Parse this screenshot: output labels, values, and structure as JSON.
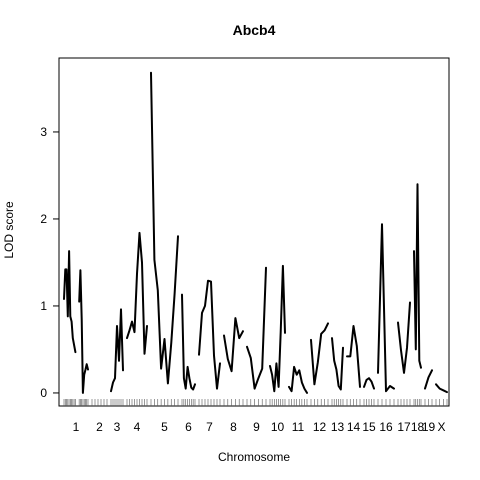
{
  "chart_data": {
    "type": "line",
    "title": "Abcb4",
    "xlabel": "Chromosome",
    "ylabel": "LOD score",
    "ylim": [
      -0.15,
      3.85
    ],
    "y_ticks": [
      0,
      1,
      2,
      3
    ],
    "grid": false,
    "legend": "none",
    "chromosome_labels": [
      "1",
      "2",
      "3",
      "4",
      "5",
      "6",
      "7",
      "8",
      "9",
      "10",
      "11",
      "12",
      "13",
      "14",
      "15",
      "16",
      "17",
      "18",
      "19",
      "X"
    ],
    "series": [
      {
        "chromosomes": [
          {
            "chr": "1",
            "lod": [
              [
                1.08,
                1.42,
                1.42,
                0.88,
                1.63,
                0.88,
                0.82,
                0.63,
                0.55,
                0.47
              ],
              [
                1.05,
                1.41,
                0.85,
                0.0,
                0.21,
                0.27,
                0.33,
                0.27
              ]
            ]
          },
          {
            "chr": "3",
            "lod": [
              [
                0.02,
                0.12,
                0.17,
                0.77,
                0.37,
                0.96,
                0.26
              ]
            ]
          },
          {
            "chr": "4",
            "lod": [
              [
                0.63,
                0.72,
                0.82,
                0.7,
                1.37,
                1.84,
                1.5,
                0.45,
                0.77
              ]
            ]
          },
          {
            "chr": "5",
            "lod": [
              [
                3.68,
                1.53,
                1.18,
                0.28,
                0.62,
                0.11,
                0.58,
                1.14,
                1.8
              ]
            ]
          },
          {
            "chr": "6",
            "lod": [
              [
                1.13,
                0.17,
                0.05,
                0.3,
                0.17,
                0.06,
                0.04,
                0.1
              ]
            ]
          },
          {
            "chr": "7",
            "lod": [
              [
                0.44,
                0.92,
                1.0,
                1.29,
                1.28,
                0.43,
                0.05,
                0.34
              ]
            ]
          },
          {
            "chr": "8",
            "lod": [
              [
                0.66,
                0.39,
                0.25,
                0.86,
                0.63,
                0.71
              ]
            ]
          },
          {
            "chr": "9",
            "lod": [
              [
                0.53,
                0.4,
                0.05,
                0.17,
                0.28,
                1.44
              ]
            ]
          },
          {
            "chr": "10",
            "lod": [
              [
                0.31,
                0.21,
                0.02,
                0.34,
                0.07,
                0.7,
                1.46,
                0.69
              ]
            ]
          },
          {
            "chr": "11",
            "lod": [
              [
                0.07,
                0.02,
                0.3,
                0.21,
                0.26,
                0.12,
                0.05,
                0.0
              ]
            ]
          },
          {
            "chr": "12",
            "lod": [
              [
                0.61,
                0.1,
                0.35,
                0.68,
                0.72,
                0.8
              ]
            ]
          },
          {
            "chr": "13",
            "lod": [
              [
                0.63,
                0.37,
                0.27,
                0.08,
                0.04,
                0.52
              ]
            ]
          },
          {
            "chr": "14",
            "lod": [
              [
                0.42,
                0.42,
                0.77,
                0.54,
                0.07
              ]
            ]
          },
          {
            "chr": "15",
            "lod": [
              [
                0.07,
                0.15,
                0.17,
                0.13,
                0.05
              ]
            ]
          },
          {
            "chr": "16",
            "lod": [
              [
                0.23,
                1.94,
                0.02,
                0.08,
                0.05
              ]
            ]
          },
          {
            "chr": "17",
            "lod": [
              [
                0.81,
                0.49,
                0.23,
                0.52,
                1.04
              ]
            ]
          },
          {
            "chr": "18",
            "lod": [
              [
                1.63,
                0.5,
                2.4,
                0.37,
                0.29
              ]
            ]
          },
          {
            "chr": "19",
            "lod": [
              [
                0.05,
                0.18,
                0.26
              ]
            ]
          },
          {
            "chr": "X",
            "lod": [
              [
                0.1,
                0.05,
                0.03,
                0.01
              ]
            ]
          }
        ]
      }
    ]
  }
}
